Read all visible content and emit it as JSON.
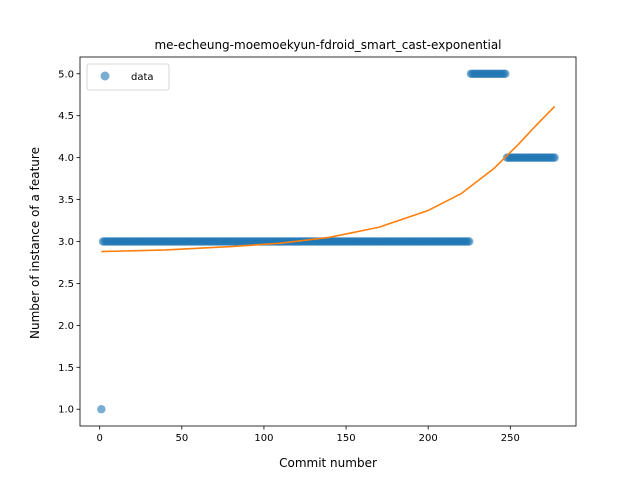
{
  "chart_data": {
    "type": "scatter",
    "title": "me-echeung-moemoekyun-fdroid_smart_cast-exponential",
    "xlabel": "Commit number",
    "ylabel": "Number of instance of a feature",
    "xlim": [
      -12,
      290
    ],
    "ylim": [
      0.8,
      5.2
    ],
    "xticks": [
      0,
      50,
      100,
      150,
      200,
      250
    ],
    "yticks": [
      1.0,
      1.5,
      2.0,
      2.5,
      3.0,
      3.5,
      4.0,
      4.5,
      5.0
    ],
    "grid": false,
    "legend": {
      "placement": "upper-left",
      "entries": [
        "data"
      ]
    },
    "colors": {
      "points": "#1f77b4",
      "fit": "#ff7f0e"
    },
    "series": [
      {
        "name": "data",
        "kind": "scatter",
        "segments": [
          {
            "x_start": 1,
            "x_end": 1,
            "y": 1.0
          },
          {
            "x_start": 2,
            "x_end": 225,
            "y": 3.0
          },
          {
            "x_start": 226,
            "x_end": 247,
            "y": 5.0
          },
          {
            "x_start": 248,
            "x_end": 277,
            "y": 4.0
          }
        ]
      },
      {
        "kind": "line",
        "x": [
          1,
          40,
          80,
          110,
          140,
          170,
          200,
          220,
          240,
          255,
          265,
          277
        ],
        "y": [
          2.88,
          2.9,
          2.94,
          2.98,
          3.05,
          3.17,
          3.37,
          3.57,
          3.87,
          4.16,
          4.37,
          4.61
        ]
      }
    ]
  }
}
